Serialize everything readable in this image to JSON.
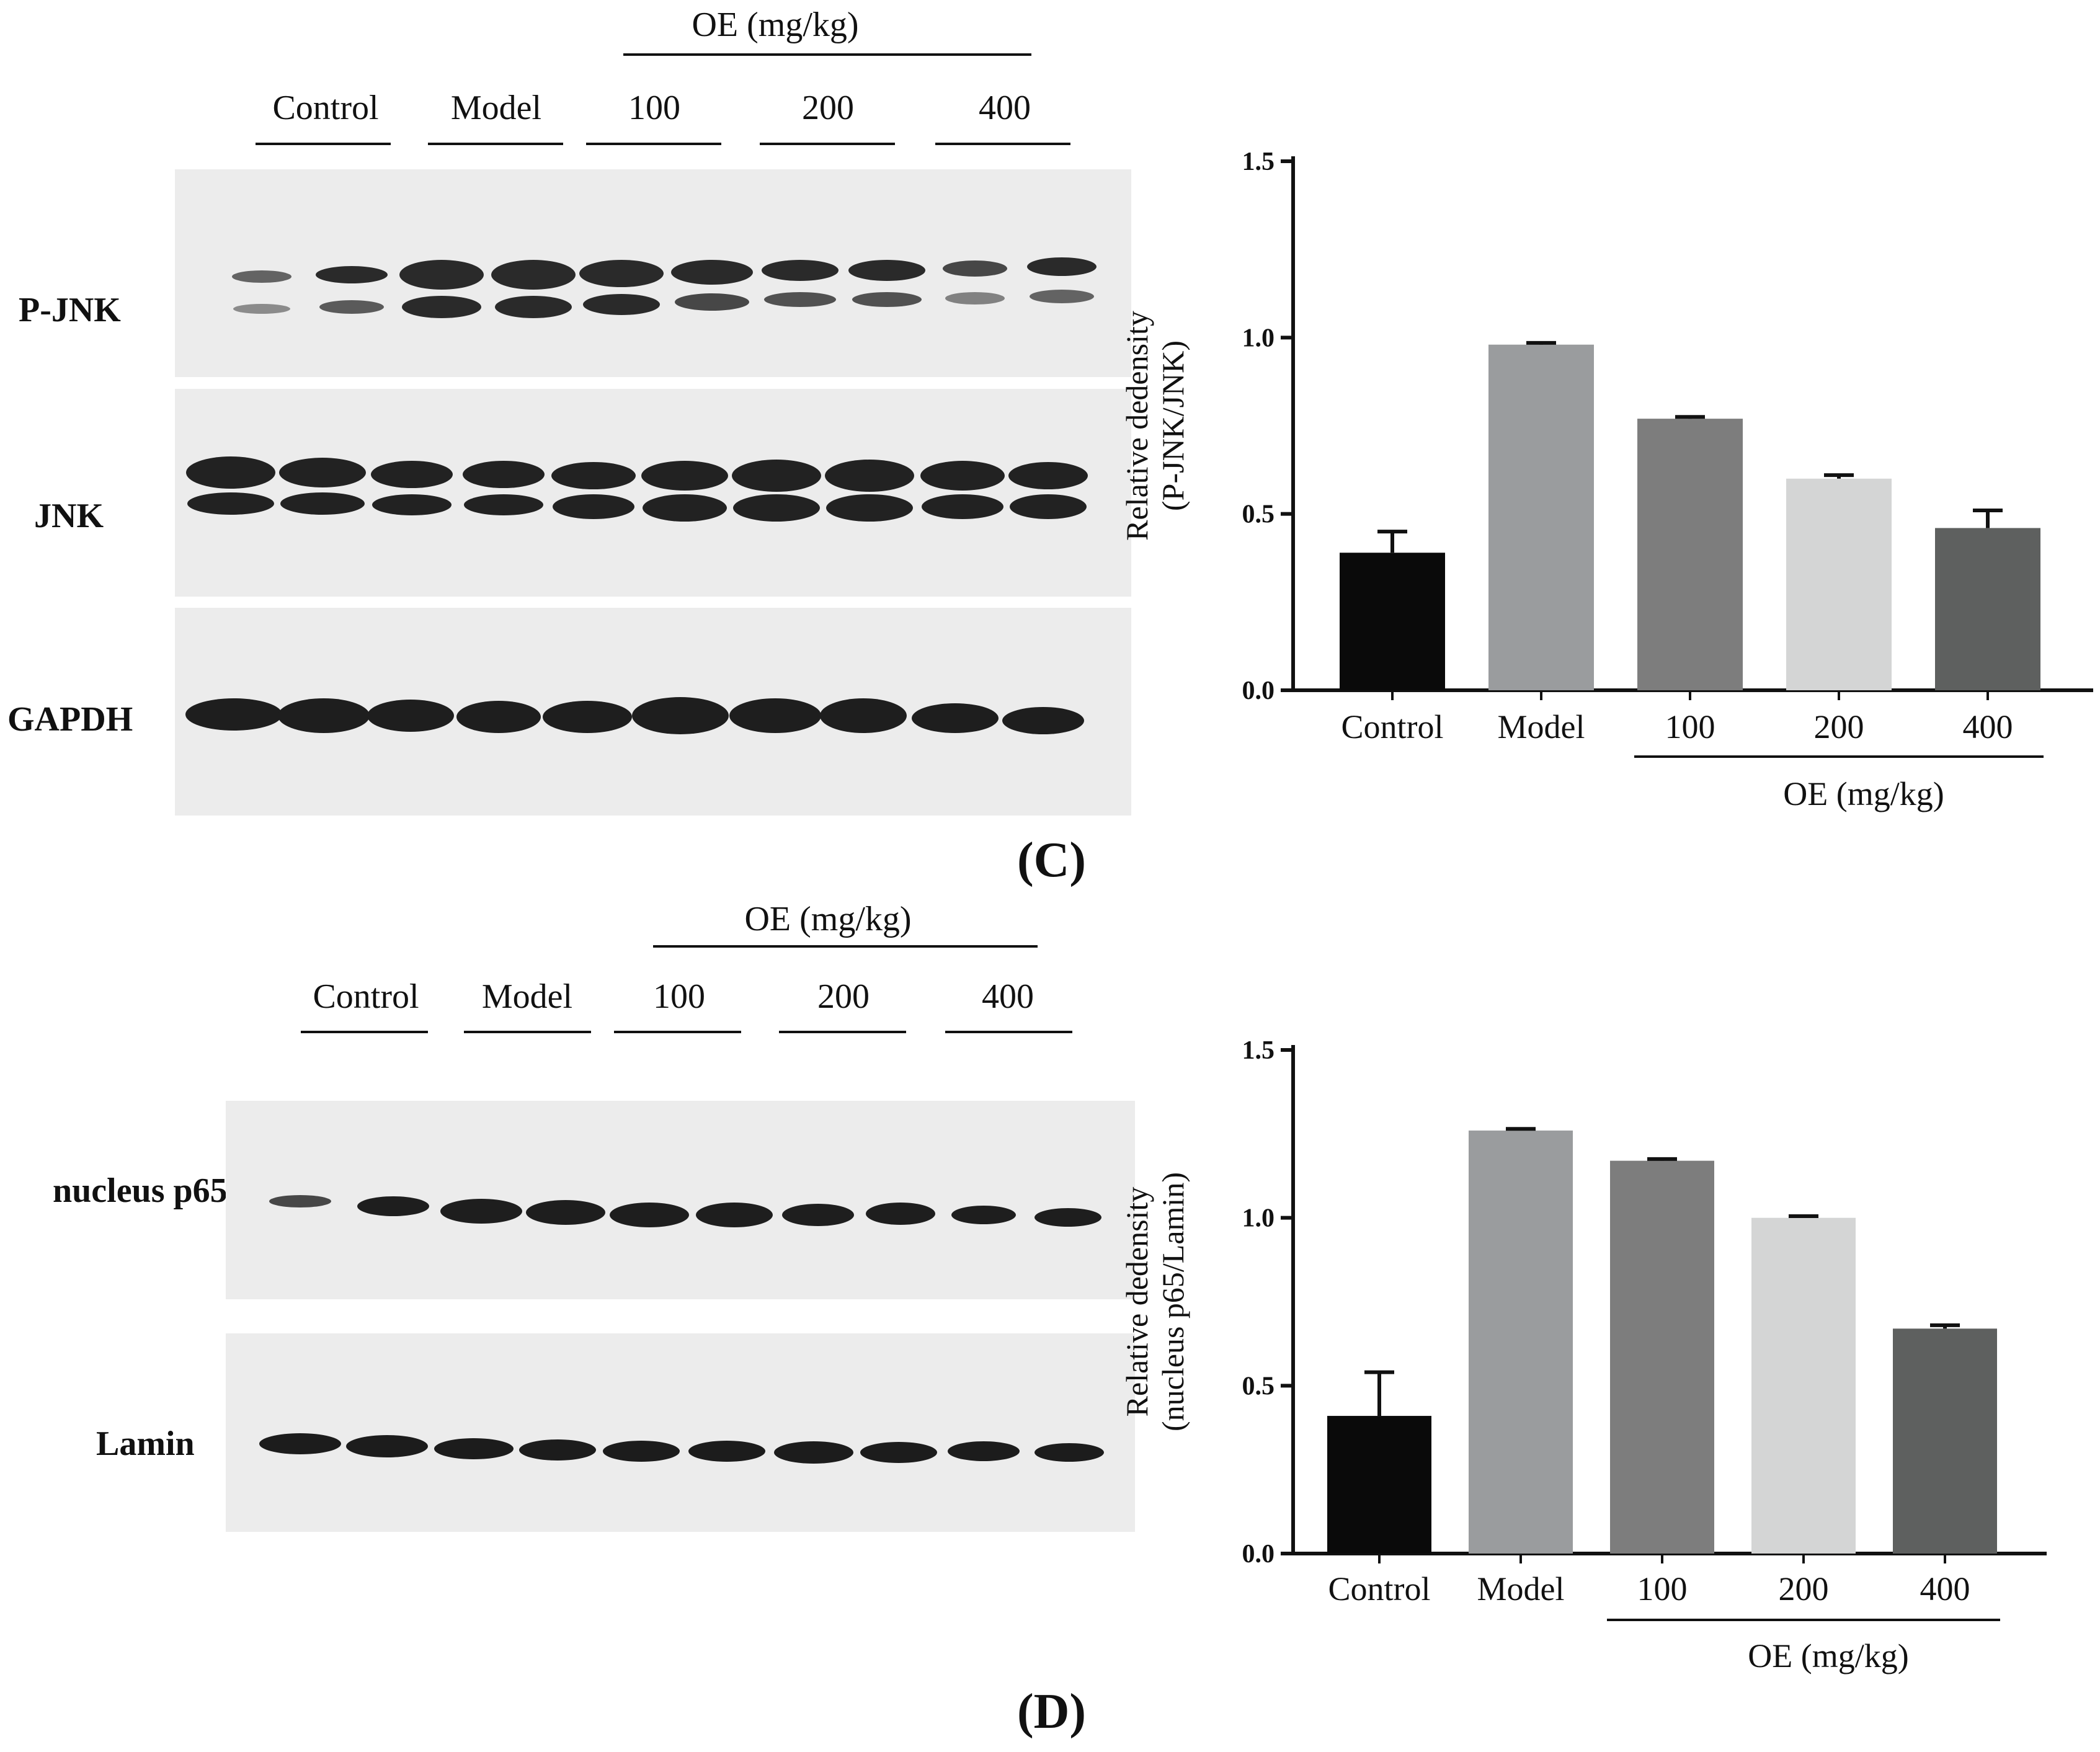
{
  "panels": [
    {
      "id": "C",
      "panel_label": "(C)",
      "blot": {
        "oe_group_label": "OE  (mg/kg)",
        "lane_groups": [
          "Control",
          "Model",
          "100",
          "200",
          "400"
        ],
        "proteins": [
          "P-JNK",
          "JNK",
          "GAPDH"
        ]
      }
    },
    {
      "id": "D",
      "panel_label": "(D)",
      "blot": {
        "oe_group_label": "OE  (mg/kg)",
        "lane_groups": [
          "Control",
          "Model",
          "100",
          "200",
          "400"
        ],
        "proteins": [
          "nucleus p65",
          "Lamin"
        ]
      }
    }
  ],
  "chart_data": [
    {
      "type": "bar",
      "categories": [
        "Control",
        "Model",
        "100",
        "200",
        "400"
      ],
      "values": [
        0.39,
        0.98,
        0.77,
        0.6,
        0.46
      ],
      "errors": [
        0.06,
        0.005,
        0.005,
        0.01,
        0.05
      ],
      "ylabel_line1": "Relative dedensity",
      "ylabel_line2": "(P-JNK/JNK)",
      "xgroup_label": "OE (mg/kg)",
      "ylim": [
        0,
        1.5
      ],
      "yticks": [
        "0.0",
        "0.5",
        "1.0",
        "1.5"
      ],
      "colors": [
        "#0a0a0a",
        "#9a9c9e",
        "#7d7d7d",
        "#d4d5d5",
        "#5e605f"
      ]
    },
    {
      "type": "bar",
      "categories": [
        "Control",
        "Model",
        "100",
        "200",
        "400"
      ],
      "values": [
        0.41,
        1.26,
        1.17,
        1.0,
        0.67
      ],
      "errors": [
        0.13,
        0.005,
        0.005,
        0.005,
        0.01
      ],
      "ylabel_line1": "Relative dedensity",
      "ylabel_line2": "(nucleus p65/Lamin)",
      "xgroup_label": "OE (mg/kg)",
      "ylim": [
        0,
        1.5
      ],
      "yticks": [
        "0.0",
        "0.5",
        "1.0",
        "1.5"
      ],
      "colors": [
        "#0a0a0a",
        "#9a9c9e",
        "#7d7d7d",
        "#d4d5d5",
        "#5e605f"
      ]
    }
  ]
}
